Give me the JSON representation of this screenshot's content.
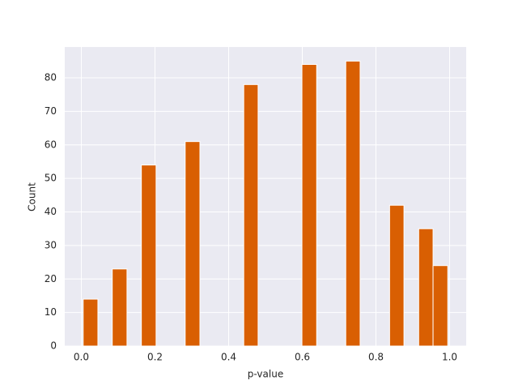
{
  "chart_data": {
    "type": "histogram",
    "x_label": "p-value",
    "y_label": "Count",
    "bins": [
      0.005,
      0.045,
      0.084,
      0.124,
      0.163,
      0.203,
      0.243,
      0.282,
      0.322,
      0.361,
      0.401,
      0.441,
      0.48,
      0.52,
      0.559,
      0.599,
      0.639,
      0.678,
      0.718,
      0.757,
      0.797,
      0.837,
      0.876,
      0.916,
      0.955,
      0.995
    ],
    "values": [
      14,
      0,
      23,
      0,
      54,
      0,
      0,
      61,
      0,
      0,
      0,
      78,
      0,
      0,
      0,
      84,
      0,
      0,
      85,
      0,
      0,
      42,
      0,
      35,
      24
    ],
    "color": "#d95f02",
    "xlim": [
      -0.045,
      1.045
    ],
    "xticks": [
      {
        "value": 0,
        "label": "0.0"
      },
      0.2,
      0.4,
      0.6,
      0.8,
      {
        "value": 1,
        "label": "1.0"
      }
    ],
    "ylim": [
      0,
      89.2
    ],
    "yticks": [
      0,
      10,
      20,
      30,
      40,
      50,
      60,
      70,
      80
    ],
    "grid": true
  }
}
